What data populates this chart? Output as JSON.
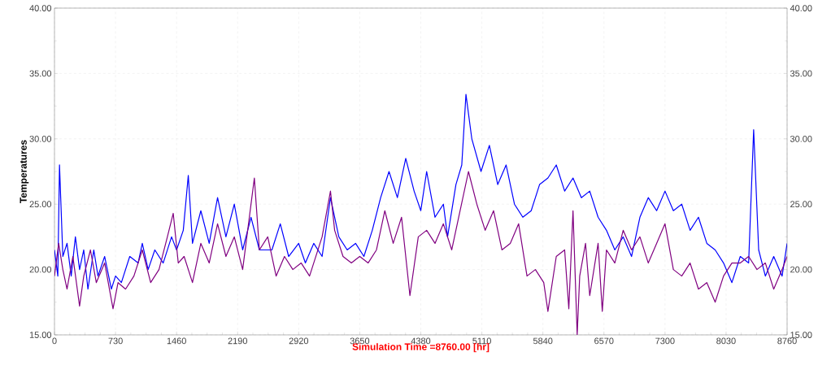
{
  "chart_data": {
    "type": "line",
    "xlabel": "Simulation Time =8760.00 [hr]",
    "ylabel": "Temperatures",
    "xlim": [
      0,
      8760
    ],
    "xticks": [
      0,
      730,
      1460,
      2190,
      2920,
      3650,
      4380,
      5110,
      5840,
      6570,
      7300,
      8030,
      8760
    ],
    "ylim": [
      15,
      40
    ],
    "yticks": [
      {
        "value": 15,
        "label": "15.00"
      },
      {
        "value": 20,
        "label": "20.00"
      },
      {
        "value": 25,
        "label": "25.00"
      },
      {
        "value": 30,
        "label": "30.00"
      },
      {
        "value": 35,
        "label": "35.00"
      },
      {
        "value": 40,
        "label": "40.00"
      }
    ],
    "y2lim": [
      15,
      40
    ],
    "y2ticks": [
      {
        "value": 15,
        "label": "15.00"
      },
      {
        "value": 20,
        "label": "20.00"
      },
      {
        "value": 25,
        "label": "25.00"
      },
      {
        "value": 30,
        "label": "30.00"
      },
      {
        "value": 35,
        "label": "35.00"
      },
      {
        "value": 40,
        "label": "40.00"
      }
    ],
    "grid": true,
    "legend": false,
    "marker": "none",
    "line_style": "solid",
    "series": [
      {
        "color": "#0000ff",
        "x": [
          0,
          40,
          60,
          100,
          150,
          200,
          250,
          300,
          350,
          400,
          470,
          520,
          600,
          680,
          730,
          800,
          900,
          1000,
          1050,
          1120,
          1200,
          1300,
          1400,
          1460,
          1540,
          1600,
          1650,
          1750,
          1850,
          1950,
          2050,
          2150,
          2250,
          2350,
          2450,
          2600,
          2700,
          2800,
          2920,
          3000,
          3100,
          3200,
          3300,
          3400,
          3500,
          3600,
          3700,
          3800,
          3900,
          4000,
          4100,
          4200,
          4300,
          4380,
          4450,
          4550,
          4650,
          4700,
          4800,
          4870,
          4920,
          4990,
          5100,
          5200,
          5300,
          5400,
          5500,
          5600,
          5700,
          5800,
          5900,
          6000,
          6100,
          6200,
          6300,
          6400,
          6500,
          6600,
          6700,
          6800,
          6900,
          7000,
          7100,
          7200,
          7300,
          7400,
          7500,
          7600,
          7700,
          7800,
          7900,
          8000,
          8100,
          8200,
          8300,
          8360,
          8420,
          8500,
          8600,
          8700,
          8760
        ],
        "values": [
          21.5,
          19.5,
          28,
          21,
          22,
          19.5,
          22.5,
          20,
          21.5,
          18.5,
          21.5,
          19.5,
          21,
          18.5,
          19.5,
          19,
          21,
          20.5,
          22,
          20,
          21.5,
          20.5,
          22.5,
          21.5,
          23,
          27.2,
          22,
          24.5,
          22,
          25.5,
          22.5,
          25,
          21.5,
          24,
          21.5,
          21.5,
          23.5,
          21,
          22,
          20.5,
          22,
          21,
          25.5,
          22.5,
          21.5,
          22,
          21,
          23,
          25.5,
          27.5,
          25.5,
          28.5,
          26,
          24.5,
          27.5,
          24,
          25,
          22.5,
          26.5,
          28,
          33.4,
          30,
          27.5,
          29.5,
          26.5,
          28,
          25,
          24,
          24.5,
          26.5,
          27,
          28,
          26,
          27,
          25.5,
          26,
          24,
          23,
          21.5,
          22.5,
          21,
          24,
          25.5,
          24.5,
          26,
          24.5,
          25,
          23,
          24,
          22,
          21.5,
          20.5,
          19,
          21,
          20.5,
          30.7,
          21.5,
          19.5,
          21,
          19.5,
          22
        ]
      },
      {
        "color": "#800080",
        "x": [
          0,
          50,
          100,
          150,
          220,
          300,
          350,
          430,
          500,
          600,
          700,
          760,
          850,
          950,
          1050,
          1150,
          1250,
          1350,
          1420,
          1480,
          1550,
          1650,
          1750,
          1850,
          1950,
          2050,
          2150,
          2250,
          2390,
          2450,
          2550,
          2650,
          2750,
          2850,
          2950,
          3050,
          3200,
          3300,
          3350,
          3450,
          3550,
          3650,
          3750,
          3850,
          3950,
          4050,
          4150,
          4250,
          4350,
          4450,
          4550,
          4650,
          4750,
          4850,
          4950,
          5050,
          5150,
          5250,
          5350,
          5450,
          5550,
          5650,
          5750,
          5850,
          5900,
          6000,
          6100,
          6150,
          6200,
          6250,
          6280,
          6350,
          6400,
          6500,
          6550,
          6600,
          6700,
          6800,
          6900,
          7000,
          7100,
          7200,
          7300,
          7400,
          7500,
          7600,
          7700,
          7800,
          7900,
          8000,
          8100,
          8200,
          8300,
          8400,
          8500,
          8600,
          8700,
          8760
        ],
        "values": [
          19.5,
          22,
          20,
          18.5,
          21,
          17.2,
          19.5,
          21.5,
          19,
          20.5,
          17,
          19,
          18.5,
          19.5,
          21.5,
          19,
          20,
          22.5,
          24.3,
          20.5,
          21,
          19,
          22,
          20.5,
          23.5,
          21,
          22.5,
          20,
          27,
          21.5,
          22.5,
          19.5,
          21,
          20,
          20.5,
          19.5,
          22.5,
          26,
          23,
          21,
          20.5,
          21,
          20.5,
          21.5,
          24.5,
          22,
          24,
          18,
          22.5,
          23,
          22,
          23.5,
          21.5,
          24.5,
          27.5,
          25,
          23,
          24.5,
          21.5,
          22,
          23.5,
          19.5,
          20,
          19,
          16.8,
          21,
          21.5,
          17,
          24.5,
          15,
          19.5,
          22,
          18,
          22,
          16.8,
          21.5,
          20.5,
          23,
          21.5,
          22.5,
          20.5,
          22,
          23.5,
          20,
          19.5,
          20.5,
          18.5,
          19,
          17.5,
          19.5,
          20.5,
          20.5,
          21,
          20,
          20.5,
          18.5,
          20,
          21
        ]
      }
    ]
  }
}
